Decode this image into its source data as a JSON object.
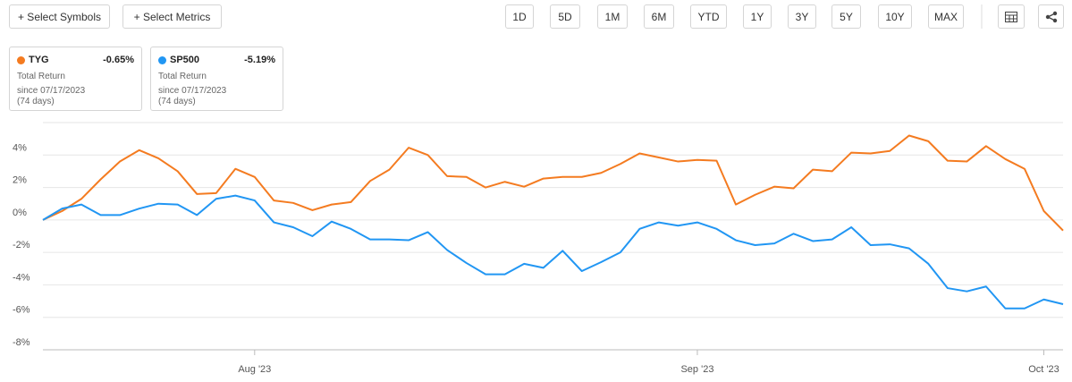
{
  "toolbar": {
    "left_buttons": [
      "+ Select Symbols",
      "+ Select Metrics"
    ],
    "ranges": [
      "1D",
      "5D",
      "1M",
      "6M",
      "YTD",
      "1Y",
      "3Y",
      "5Y",
      "10Y",
      "MAX"
    ]
  },
  "chart_data": {
    "type": "line",
    "categories": [
      null,
      null,
      null,
      null,
      null,
      null,
      null,
      null,
      null,
      null,
      null,
      "Aug '23",
      null,
      null,
      null,
      null,
      null,
      null,
      null,
      null,
      null,
      null,
      null,
      null,
      null,
      null,
      null,
      null,
      null,
      null,
      null,
      null,
      null,
      null,
      "Sep '23",
      null,
      null,
      null,
      null,
      null,
      null,
      null,
      null,
      null,
      null,
      null,
      null,
      null,
      null,
      null,
      null,
      null,
      "Oct '23",
      null
    ],
    "series": [
      {
        "name": "TYG",
        "color": "#f47b20",
        "total_return": {
          "value": -0.65,
          "label": "-0.65%"
        },
        "metric": "Total Return",
        "since": "since 07/17/2023",
        "period": "(74 days)",
        "values": [
          0,
          0.55,
          1.3,
          2.5,
          3.6,
          4.3,
          3.8,
          3.0,
          1.6,
          1.65,
          3.15,
          2.65,
          1.2,
          1.05,
          0.6,
          0.95,
          1.1,
          2.4,
          3.1,
          4.45,
          4.0,
          2.7,
          2.65,
          2.0,
          2.35,
          2.05,
          2.55,
          2.65,
          2.65,
          2.9,
          3.45,
          4.1,
          3.85,
          3.6,
          3.7,
          3.65,
          0.95,
          1.55,
          2.05,
          1.95,
          3.1,
          3.0,
          4.15,
          4.1,
          4.25,
          5.2,
          4.85,
          3.65,
          3.6,
          4.55,
          3.75,
          3.15,
          0.55,
          -0.65
        ]
      },
      {
        "name": "SP500",
        "color": "#2196f3",
        "total_return": {
          "value": -5.19,
          "label": "-5.19%"
        },
        "metric": "Total Return",
        "since": "since 07/17/2023",
        "period": "(74 days)",
        "values": [
          0,
          0.7,
          0.95,
          0.3,
          0.3,
          0.7,
          1.0,
          0.95,
          0.3,
          1.3,
          1.5,
          1.2,
          -0.15,
          -0.45,
          -1.0,
          -0.1,
          -0.55,
          -1.2,
          -1.2,
          -1.25,
          -0.75,
          -1.85,
          -2.65,
          -3.35,
          -3.35,
          -2.7,
          -2.95,
          -1.9,
          -3.15,
          -2.6,
          -2.0,
          -0.55,
          -0.15,
          -0.35,
          -0.15,
          -0.55,
          -1.25,
          -1.55,
          -1.45,
          -0.85,
          -1.3,
          -1.2,
          -0.45,
          -1.55,
          -1.5,
          -1.75,
          -2.7,
          -4.2,
          -4.4,
          -4.1,
          -5.45,
          -5.45,
          -4.9,
          -5.19
        ]
      }
    ],
    "ylim": [
      -8,
      6
    ],
    "yticks": [
      {
        "value": -8,
        "label": "-8%"
      },
      {
        "value": -6,
        "label": "-6%"
      },
      {
        "value": -4,
        "label": "-4%"
      },
      {
        "value": -2,
        "label": "-2%"
      },
      {
        "value": 0,
        "label": "0%"
      },
      {
        "value": 2,
        "label": "2%"
      },
      {
        "value": 4,
        "label": "4%"
      }
    ],
    "grid": true
  }
}
